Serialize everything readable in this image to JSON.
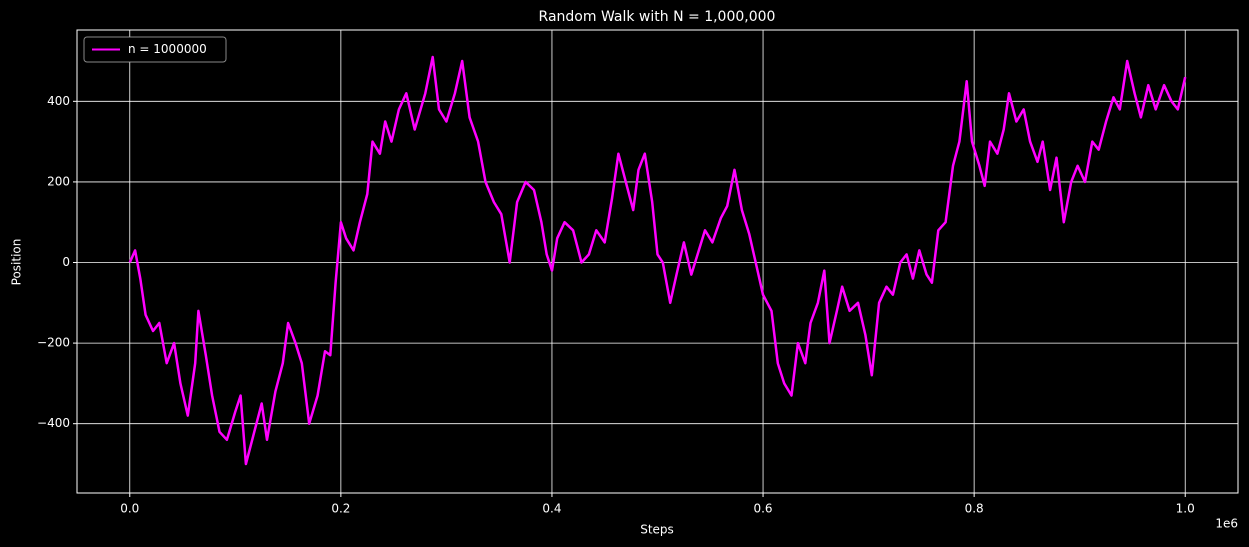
{
  "chart_data": {
    "type": "line",
    "title": "Random Walk with N = 1,000,000",
    "xlabel": "Steps",
    "ylabel": "Position",
    "x_offset_label": "1e6",
    "x": [
      0,
      5000,
      10000,
      15000,
      22000,
      28000,
      35000,
      42000,
      48000,
      55000,
      62000,
      65000,
      72000,
      78000,
      85000,
      92000,
      100000,
      105000,
      110000,
      118000,
      125000,
      130000,
      138000,
      145000,
      150000,
      157000,
      163000,
      170000,
      178000,
      185000,
      190000,
      195000,
      200000,
      205000,
      212000,
      218000,
      225000,
      230000,
      237000,
      242000,
      248000,
      255000,
      262000,
      270000,
      280000,
      287000,
      293000,
      300000,
      308000,
      315000,
      322000,
      330000,
      337000,
      345000,
      352000,
      360000,
      367000,
      375000,
      383000,
      390000,
      395000,
      400000,
      405000,
      412000,
      420000,
      428000,
      435000,
      442000,
      450000,
      457000,
      463000,
      470000,
      477000,
      482000,
      488000,
      495000,
      500000,
      505000,
      512000,
      518000,
      525000,
      532000,
      538000,
      545000,
      552000,
      560000,
      566000,
      573000,
      580000,
      587000,
      593000,
      600000,
      608000,
      614000,
      620000,
      627000,
      633000,
      640000,
      645000,
      652000,
      658000,
      663000,
      670000,
      675000,
      682000,
      690000,
      697000,
      703000,
      710000,
      717000,
      723000,
      730000,
      736000,
      742000,
      748000,
      755000,
      760000,
      766000,
      773000,
      780000,
      786000,
      793000,
      798000,
      805000,
      810000,
      815000,
      822000,
      828000,
      833000,
      840000,
      847000,
      853000,
      860000,
      865000,
      872000,
      878000,
      885000,
      892000,
      898000,
      905000,
      912000,
      918000,
      925000,
      932000,
      938000,
      945000,
      952000,
      958000,
      965000,
      972000,
      980000,
      987000,
      993000,
      1000000
    ],
    "series": [
      {
        "name": "n = 1000000",
        "color": "#ff00ff",
        "values": [
          0,
          30,
          -40,
          -130,
          -170,
          -150,
          -250,
          -200,
          -300,
          -380,
          -250,
          -120,
          -230,
          -330,
          -420,
          -440,
          -370,
          -330,
          -500,
          -420,
          -350,
          -440,
          -320,
          -250,
          -150,
          -200,
          -250,
          -400,
          -330,
          -220,
          -230,
          -50,
          100,
          60,
          30,
          100,
          170,
          300,
          270,
          350,
          300,
          380,
          420,
          330,
          420,
          510,
          380,
          350,
          420,
          500,
          360,
          300,
          200,
          150,
          120,
          0,
          150,
          200,
          180,
          100,
          20,
          -20,
          60,
          100,
          80,
          0,
          20,
          80,
          50,
          160,
          270,
          200,
          130,
          230,
          270,
          150,
          20,
          0,
          -100,
          -30,
          50,
          -30,
          20,
          80,
          50,
          110,
          140,
          230,
          130,
          70,
          0,
          -80,
          -120,
          -250,
          -300,
          -330,
          -200,
          -250,
          -150,
          -100,
          -20,
          -200,
          -120,
          -60,
          -120,
          -100,
          -180,
          -280,
          -100,
          -60,
          -80,
          0,
          20,
          -40,
          30,
          -30,
          -50,
          80,
          100,
          240,
          300,
          450,
          300,
          240,
          190,
          300,
          270,
          330,
          420,
          350,
          380,
          300,
          250,
          300,
          180,
          260,
          100,
          200,
          240,
          200,
          300,
          280,
          350,
          410,
          380,
          500,
          420,
          360,
          440,
          380,
          440,
          400,
          380,
          460
        ]
      }
    ],
    "xlim": [
      -50000,
      1050000
    ],
    "xticks": [
      {
        "value": 0,
        "label": "0.0"
      },
      {
        "value": 200000,
        "label": "0.2"
      },
      {
        "value": 400000,
        "label": "0.4"
      },
      {
        "value": 600000,
        "label": "0.6"
      },
      {
        "value": 800000,
        "label": "0.8"
      },
      {
        "value": 1000000,
        "label": "1.0"
      }
    ],
    "ylim": [
      -572,
      577
    ],
    "yticks": [
      {
        "value": -400,
        "label": "−400"
      },
      {
        "value": -200,
        "label": "−200"
      },
      0,
      200,
      400
    ],
    "grid": true,
    "legend": "upper left"
  }
}
